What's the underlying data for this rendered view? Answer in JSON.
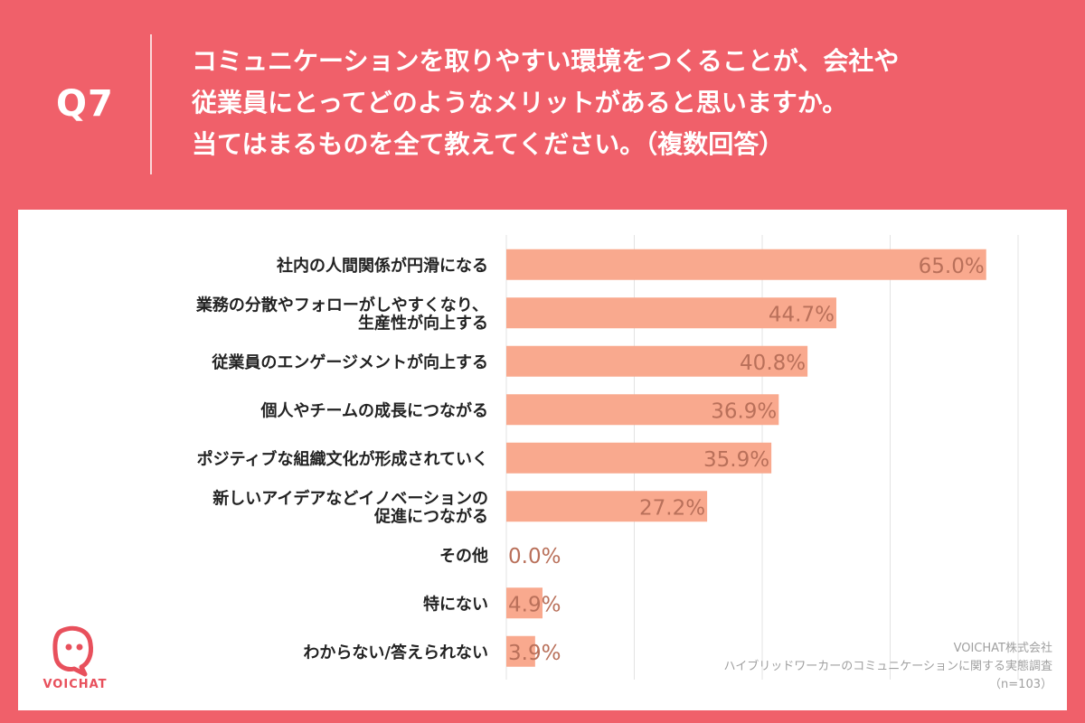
{
  "question": {
    "number": "Q7",
    "lines": [
      "コミュニケーションを取りやすい環境をつくることが、会社や",
      "従業員にとってどのようなメリットがあると思いますか。",
      "当てはまるものを全て教えてください。（複数回答）"
    ]
  },
  "chart_data": {
    "type": "bar",
    "orientation": "horizontal",
    "categories": [
      [
        "社内の人間関係が円滑になる"
      ],
      [
        "業務の分散やフォローがしやすくなり、",
        "生産性が向上する"
      ],
      [
        "従業員のエンゲージメントが向上する"
      ],
      [
        "個人やチームの成長につながる"
      ],
      [
        "ポジティブな組織文化が形成されていく"
      ],
      [
        "新しいアイデアなどイノベーションの",
        "促進につながる"
      ],
      [
        "その他"
      ],
      [
        "特にない"
      ],
      [
        "わからない/答えられない"
      ]
    ],
    "values": [
      65.0,
      44.7,
      40.8,
      36.9,
      35.9,
      27.2,
      0.0,
      4.9,
      3.9
    ],
    "value_labels": [
      "65.0%",
      "44.7%",
      "40.8%",
      "36.9%",
      "35.9%",
      "27.2%",
      "0.0%",
      "4.9%",
      "3.9%"
    ],
    "xlim": [
      0,
      70
    ],
    "grid": true,
    "bar_color": "#f9a98e",
    "label_color": "#b9705a"
  },
  "brand": {
    "name": "VOICHAT",
    "color": "#e8505c"
  },
  "footer": {
    "company": "VOICHAT株式会社",
    "survey": "ハイブリッドワーカーのコミュニケーションに関する実態調査",
    "sample": "（n=103）"
  },
  "colors": {
    "background": "#f0606a",
    "card": "#ffffff",
    "grid": "#e3e3e3"
  }
}
